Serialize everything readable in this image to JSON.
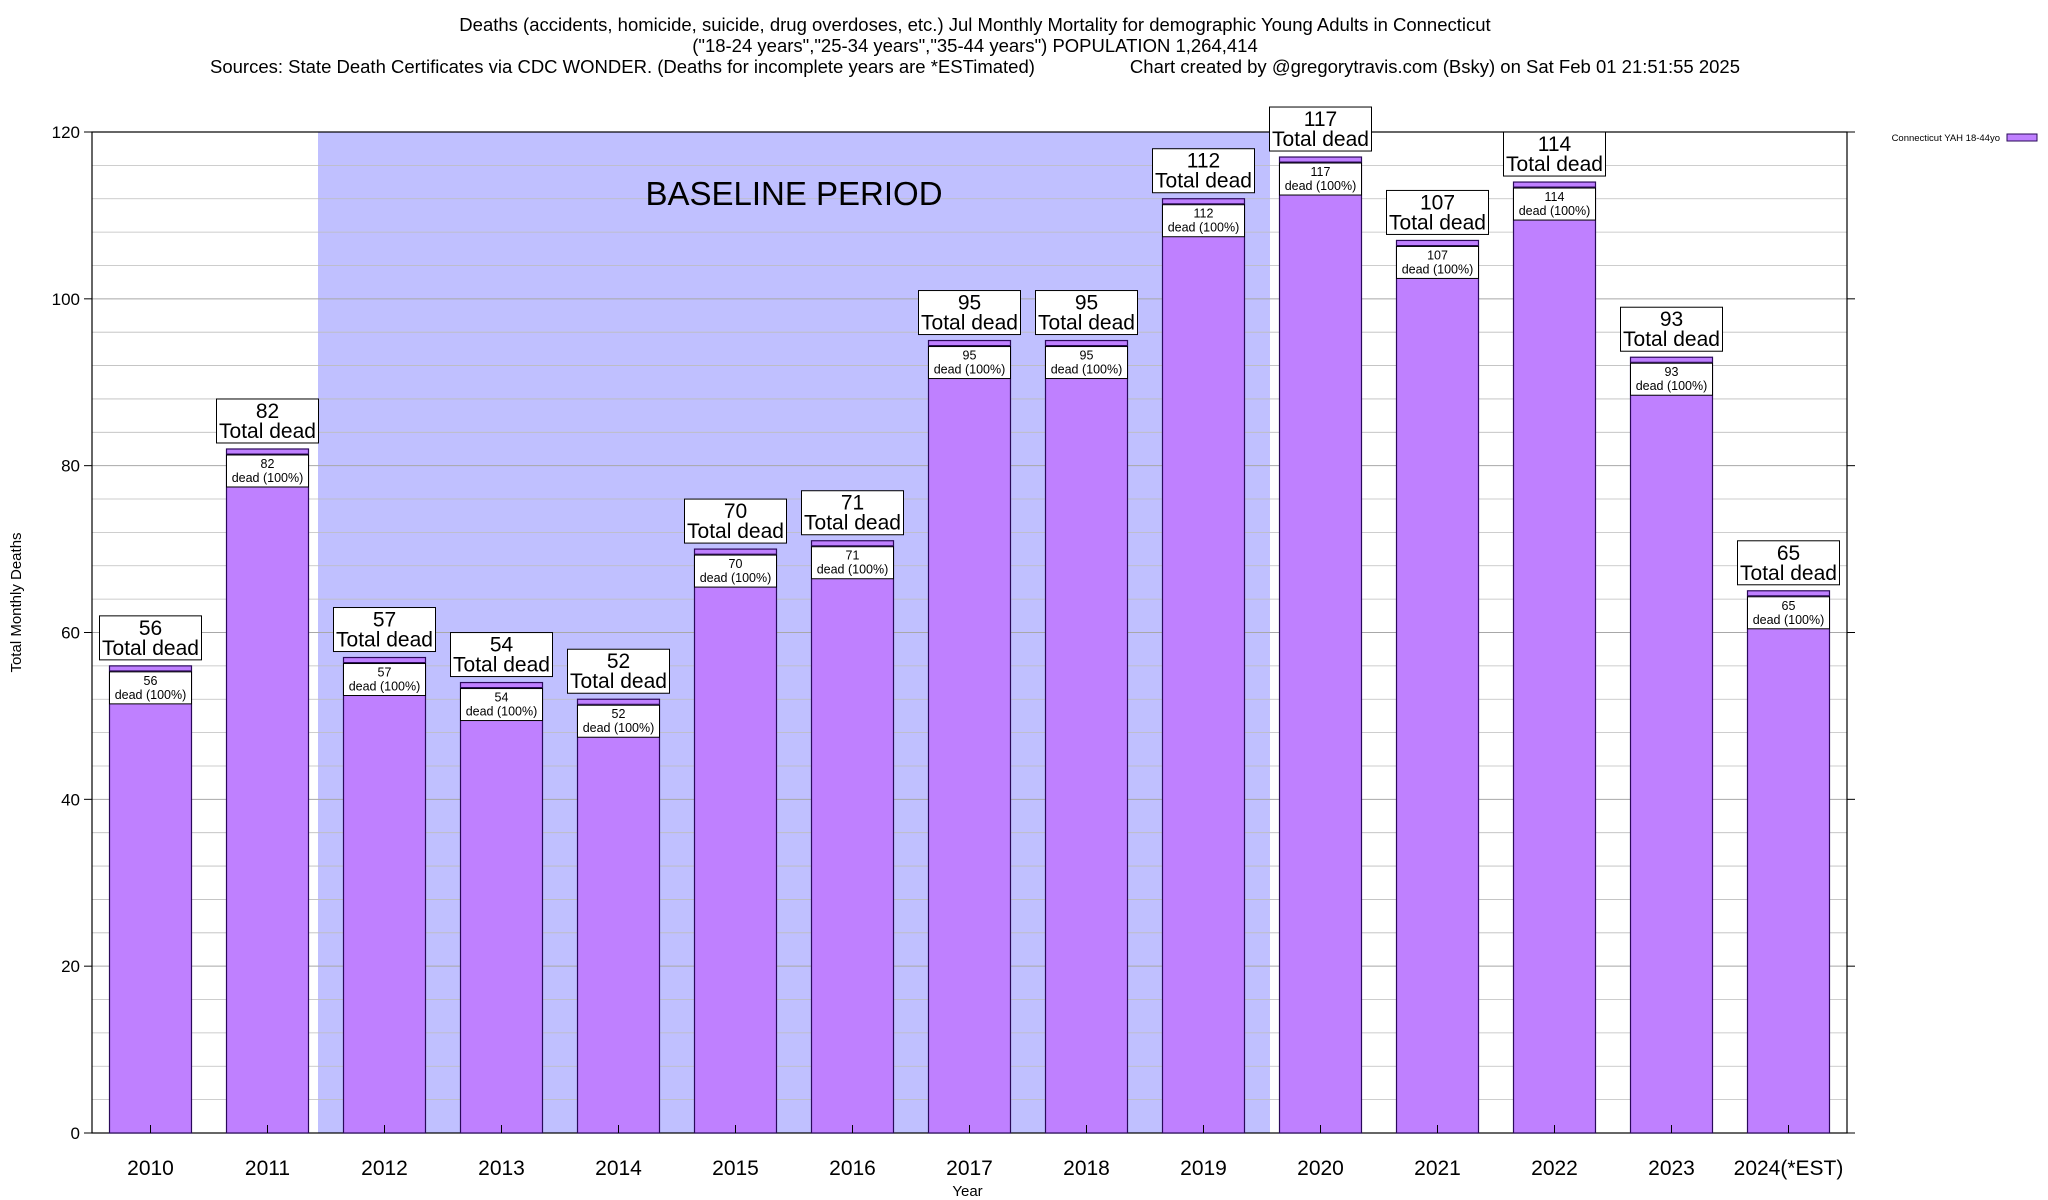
{
  "chart_data": {
    "type": "bar",
    "title": "Deaths (accidents, homicide, suicide, drug overdoses, etc.) Jul Monthly Mortality for demographic Young Adults in Connecticut",
    "subtitle": "(\"18-24 years\",\"25-34 years\",\"35-44 years\") POPULATION 1,264,414",
    "sources": "Sources: State Death Certificates via CDC WONDER. (Deaths for incomplete years are *ESTimated)",
    "credit": "Chart created by @gregorytravis.com (Bsky) on Sat Feb 01 21:51:55 2025",
    "xlabel": "Year",
    "ylabel": "Total Monthly Deaths",
    "ylim": [
      0,
      120
    ],
    "yticks": [
      0,
      20,
      40,
      60,
      80,
      100,
      120
    ],
    "grid": true,
    "categories": [
      "2010",
      "2011",
      "2012",
      "2013",
      "2014",
      "2015",
      "2016",
      "2017",
      "2018",
      "2019",
      "2020",
      "2021",
      "2022",
      "2023",
      "2024(*EST)"
    ],
    "series": [
      {
        "name": "Connecticut YAH 18-44yo",
        "values": [
          56,
          82,
          57,
          54,
          52,
          70,
          71,
          95,
          95,
          112,
          117,
          107,
          114,
          93,
          65
        ]
      }
    ],
    "total_label": "Total dead",
    "bar_label_suffix": "dead (100%)",
    "baseline": {
      "label": "BASELINE PERIOD",
      "start": "2012",
      "end": "2019"
    },
    "legend_position": "top-right",
    "colors": {
      "bar": "#bf80ff",
      "bar_outline": "#2a0a5a",
      "baseline_fill": "#c0c0ff",
      "grid": "#bdbdbd"
    }
  }
}
